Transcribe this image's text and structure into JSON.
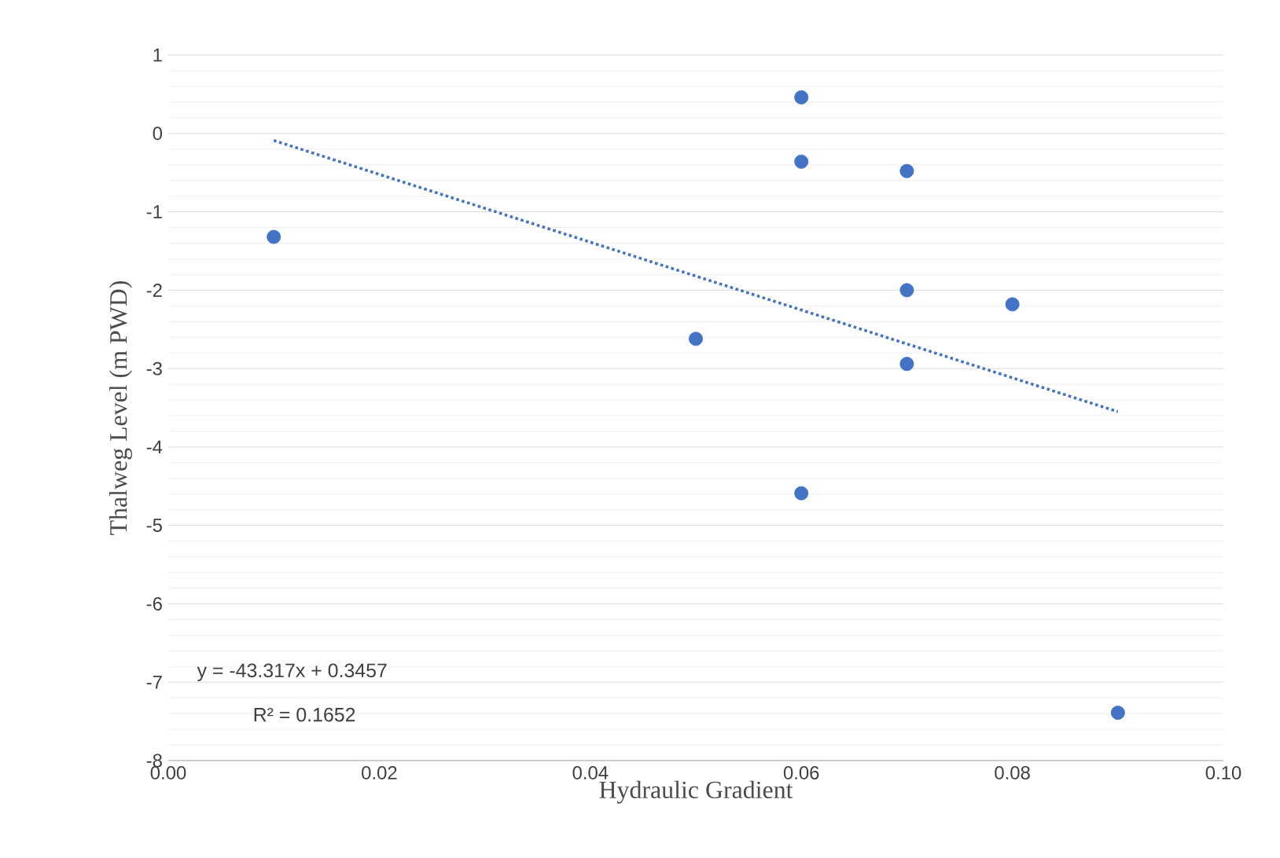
{
  "chart_data": {
    "type": "scatter",
    "xlabel": "Hydraulic Gradient",
    "ylabel": "Thalweg Level (m PWD)",
    "xlim": [
      0,
      0.1
    ],
    "xticks": [
      {
        "value": 0,
        "label": "0.00"
      },
      {
        "value": 0.02,
        "label": "0.02"
      },
      {
        "value": 0.04,
        "label": "0.04"
      },
      {
        "value": 0.06,
        "label": "0.06"
      },
      {
        "value": 0.08,
        "label": "0.08"
      },
      {
        "value": 0.1,
        "label": "0.10"
      }
    ],
    "ylim": [
      -8,
      1
    ],
    "yticks": [
      -8,
      -7,
      -6,
      -5,
      -4,
      -3,
      -2,
      -1,
      0,
      1
    ],
    "grid": "y",
    "series": [
      {
        "color": "#4472c4",
        "marker": "circle",
        "x": [
          0.01,
          0.05,
          0.06,
          0.06,
          0.06,
          0.07,
          0.07,
          0.07,
          0.08,
          0.09
        ],
        "values": [
          -1.32,
          -2.62,
          0.46,
          -0.36,
          -4.59,
          -0.48,
          -2.0,
          -2.94,
          -2.18,
          -7.39
        ]
      },
      {
        "type": "line",
        "color": "#4472c4",
        "marker": "none",
        "line_style": "dotted",
        "x": [
          0.01,
          0.09
        ],
        "values": [
          -0.09,
          -3.55
        ]
      }
    ],
    "annotations": [
      "y = -43.317x + 0.3457",
      "R² = 0.1652"
    ]
  }
}
